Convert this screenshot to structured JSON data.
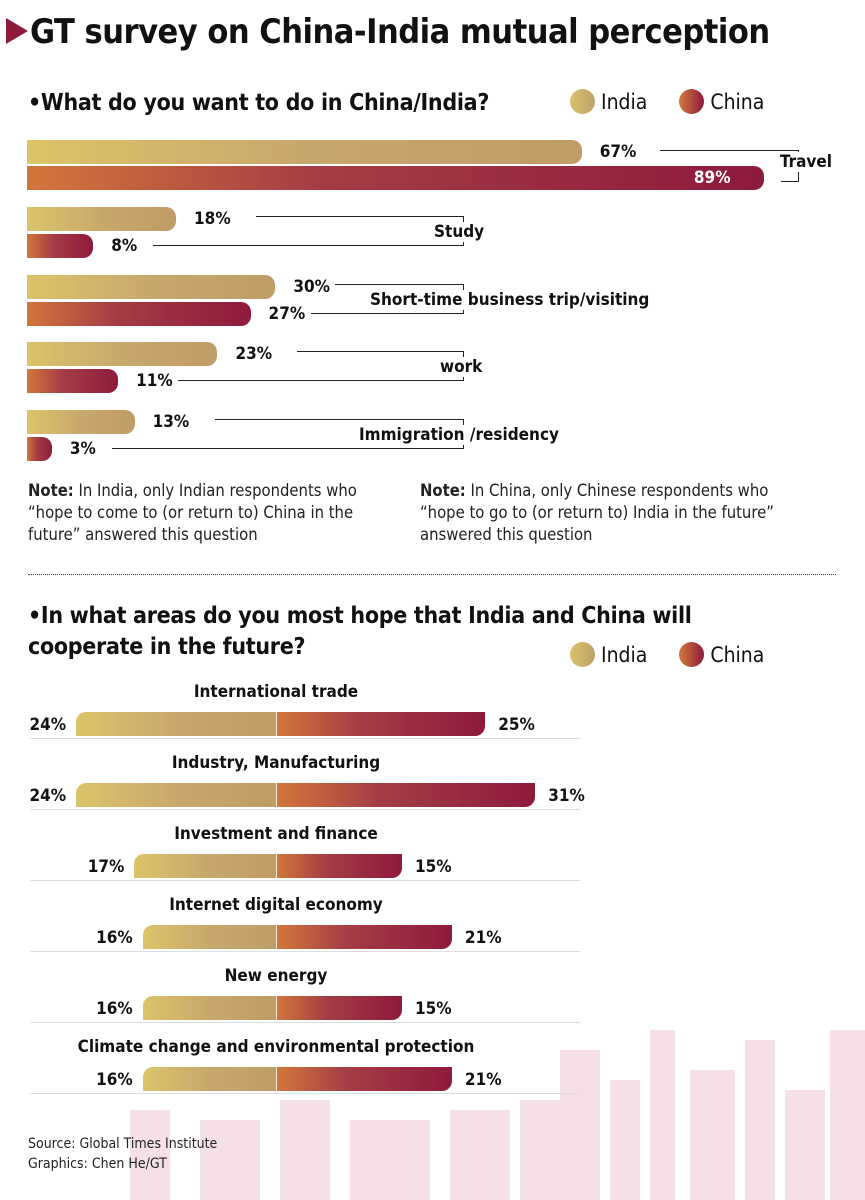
{
  "title": "GT survey on China-India mutual perception",
  "legend": {
    "india": "India",
    "china": "China"
  },
  "colors": {
    "india": "#c7a86c",
    "china": "#8e1a3c",
    "accent": "#8e1a3c"
  },
  "chart_data": [
    {
      "type": "bar",
      "orientation": "horizontal",
      "title": "•What do you want to do in China/India?",
      "categories": [
        "Travel",
        "Study",
        "Short-time business trip/visiting",
        "work",
        "Immigration /residency"
      ],
      "series": [
        {
          "name": "India",
          "values": [
            67,
            18,
            30,
            23,
            13
          ],
          "labels": [
            "67%",
            "18%",
            "30%",
            "23%",
            "13%"
          ]
        },
        {
          "name": "China",
          "values": [
            89,
            8,
            27,
            11,
            3
          ],
          "labels": [
            "89%",
            "8%",
            "27%",
            "11%",
            "3%"
          ]
        }
      ],
      "legend": "top-right",
      "grid": false
    },
    {
      "type": "bar",
      "orientation": "diverging",
      "title": "•In what areas do you most hope that India and China will cooperate in the future?",
      "categories": [
        "International trade",
        "Industry, Manufacturing",
        "Investment and finance",
        "Internet digital economy",
        "New energy",
        "Climate change and environmental protection"
      ],
      "series": [
        {
          "name": "India",
          "values": [
            24,
            24,
            17,
            16,
            16,
            16
          ],
          "labels": [
            "24%",
            "24%",
            "17%",
            "16%",
            "16%",
            "16%"
          ]
        },
        {
          "name": "China",
          "values": [
            25,
            31,
            15,
            21,
            15,
            21
          ],
          "labels": [
            "25%",
            "31%",
            "15%",
            "21%",
            "15%",
            "21%"
          ]
        }
      ],
      "legend": "right",
      "grid": false
    }
  ],
  "notes": {
    "india_bold": "Note:",
    "india": " In India, only Indian respondents who “hope to come to (or return to) China in the future” answered this question",
    "china_bold": "Note:",
    "china": " In China, only Chinese respondents who “hope to go to (or return to) India in the future” answered this question"
  },
  "source": "Source: Global Times Institute",
  "credit": "Graphics: Chen He/GT"
}
